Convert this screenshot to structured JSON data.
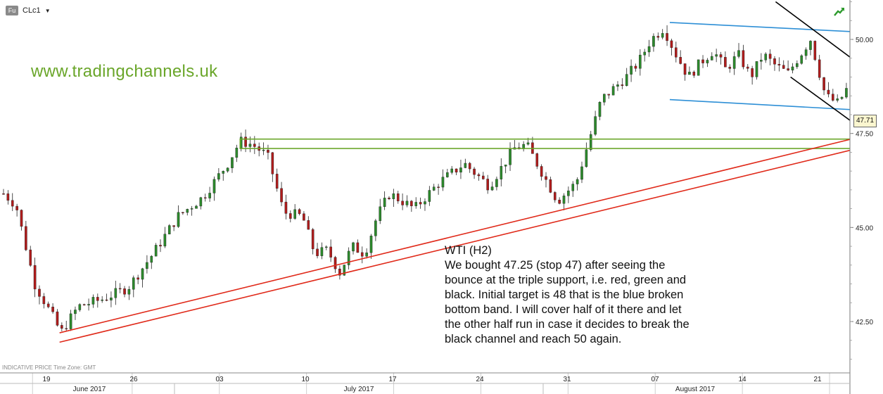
{
  "header": {
    "badge": "Fu",
    "symbol": "CLc1",
    "dropdown_icon": "caret-down-icon",
    "trend_icon": "trend-up-icon"
  },
  "watermark": "www.tradingchannels.uk",
  "note": {
    "title": "WTI (H2)",
    "lines": [
      "We bought 47.25 (stop 47) after seeing the",
      "bounce at the triple support, i.e. red, green and",
      "black. Initial target is 48 that is the blue broken",
      "bottom band. I will cover half of it there and let",
      "the other half run in case it decides to break the",
      "black channel and reach 50 again."
    ]
  },
  "footer_info": "INDICATIVE PRICE   Time Zone: GMT",
  "current_price": "47.71",
  "colors": {
    "up": "#2c8a2c",
    "down": "#b01c1c",
    "watermark": "#6aa62a",
    "red_line": "#e02a1a",
    "blue_line": "#2d8fd6",
    "green_zone": "#6aa62a",
    "black_line": "#000000"
  },
  "chart_data": {
    "type": "candlestick",
    "instrument": "CLc1",
    "timeframe": "H2",
    "y_axis": {
      "ticks": [
        42.5,
        45.0,
        47.5,
        50.0
      ],
      "tick_labels": [
        "42.50",
        "45.00",
        "47.50",
        "50.00"
      ],
      "range": [
        40.55,
        51.0
      ]
    },
    "x_axis": {
      "day_ticks": [
        "19",
        "26",
        "03",
        "10",
        "17",
        "24",
        "31",
        "07",
        "14",
        "21"
      ],
      "month_labels": [
        "June 2017",
        "July 2017",
        "August 2017"
      ]
    },
    "price_path": [
      {
        "d": 0,
        "p": 45.9
      },
      {
        "d": 1,
        "p": 45.6
      },
      {
        "d": 2.5,
        "p": 43.5
      },
      {
        "d": 4,
        "p": 42.6
      },
      {
        "d": 4.6,
        "p": 42.2
      },
      {
        "d": 6,
        "p": 42.9
      },
      {
        "d": 8,
        "p": 43.1
      },
      {
        "d": 10,
        "p": 43.4
      },
      {
        "d": 12,
        "p": 44.3
      },
      {
        "d": 14,
        "p": 45.3
      },
      {
        "d": 16,
        "p": 45.8
      },
      {
        "d": 18,
        "p": 46.7
      },
      {
        "d": 19,
        "p": 47.3
      },
      {
        "d": 20,
        "p": 47.2
      },
      {
        "d": 21.2,
        "p": 46.9
      },
      {
        "d": 22.5,
        "p": 45.4
      },
      {
        "d": 24,
        "p": 45.3
      },
      {
        "d": 25,
        "p": 44.3
      },
      {
        "d": 26,
        "p": 44.4
      },
      {
        "d": 27,
        "p": 43.8
      },
      {
        "d": 28,
        "p": 44.5
      },
      {
        "d": 29,
        "p": 44.3
      },
      {
        "d": 30,
        "p": 45.3
      },
      {
        "d": 31,
        "p": 45.9
      },
      {
        "d": 33,
        "p": 45.5
      },
      {
        "d": 35,
        "p": 46.2
      },
      {
        "d": 37,
        "p": 46.7
      },
      {
        "d": 39,
        "p": 46.1
      },
      {
        "d": 41,
        "p": 47.1
      },
      {
        "d": 42,
        "p": 47.2
      },
      {
        "d": 43,
        "p": 46.6
      },
      {
        "d": 44.5,
        "p": 45.7
      },
      {
        "d": 46,
        "p": 46.2
      },
      {
        "d": 47,
        "p": 47.3
      },
      {
        "d": 48,
        "p": 48.4
      },
      {
        "d": 49,
        "p": 48.7
      },
      {
        "d": 50,
        "p": 49.0
      },
      {
        "d": 51,
        "p": 49.4
      },
      {
        "d": 52,
        "p": 50.0
      },
      {
        "d": 53,
        "p": 50.3
      },
      {
        "d": 54,
        "p": 49.6
      },
      {
        "d": 55,
        "p": 49.0
      },
      {
        "d": 56,
        "p": 49.4
      },
      {
        "d": 57,
        "p": 49.7
      },
      {
        "d": 58,
        "p": 49.2
      },
      {
        "d": 59,
        "p": 49.6
      },
      {
        "d": 60,
        "p": 49.0
      },
      {
        "d": 61,
        "p": 49.6
      },
      {
        "d": 62,
        "p": 49.3
      },
      {
        "d": 63,
        "p": 49.1
      },
      {
        "d": 64,
        "p": 49.6
      },
      {
        "d": 64.8,
        "p": 50.0
      },
      {
        "d": 66,
        "p": 48.5
      },
      {
        "d": 67,
        "p": 48.3
      },
      {
        "d": 68.5,
        "p": 49.1
      },
      {
        "d": 69.3,
        "p": 48.6
      },
      {
        "d": 70,
        "p": 47.6
      },
      {
        "d": 71,
        "p": 47.4
      },
      {
        "d": 72,
        "p": 47.1
      },
      {
        "d": 72.6,
        "p": 47.6
      },
      {
        "d": 73,
        "p": 47.71
      }
    ],
    "overlays": [
      {
        "name": "red support line 1",
        "color": "red",
        "points": [
          {
            "d": 4.5,
            "p": 42.2
          },
          {
            "d": 83.5,
            "p": 48.6
          }
        ]
      },
      {
        "name": "red support line 2",
        "color": "red",
        "points": [
          {
            "d": 4.5,
            "p": 41.95
          },
          {
            "d": 83.5,
            "p": 48.3
          }
        ]
      },
      {
        "name": "blue channel top",
        "color": "blue",
        "points": [
          {
            "d": 53.5,
            "p": 50.45
          },
          {
            "d": 83.5,
            "p": 49.95
          }
        ]
      },
      {
        "name": "blue channel bottom",
        "color": "blue",
        "points": [
          {
            "d": 53.5,
            "p": 48.4
          },
          {
            "d": 83.5,
            "p": 47.85
          }
        ]
      },
      {
        "name": "black channel upper",
        "color": "black",
        "points": [
          {
            "d": 62,
            "p": 51.0
          },
          {
            "d": 83.5,
            "p": 45.7
          }
        ]
      },
      {
        "name": "black channel lower",
        "color": "black",
        "points": [
          {
            "d": 63.2,
            "p": 49.0
          },
          {
            "d": 83.5,
            "p": 44.1
          }
        ]
      }
    ],
    "zones": [
      {
        "name": "green support zone",
        "color": "green",
        "d_from": 19,
        "d_to": 74.5,
        "p_from": 47.1,
        "p_to": 47.35
      }
    ]
  }
}
